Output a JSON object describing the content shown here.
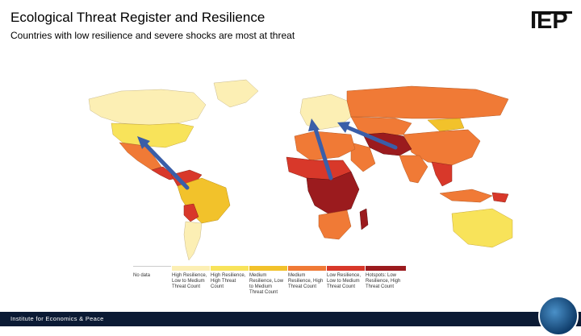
{
  "header": {
    "title": "Ecological Threat Register and Resilience",
    "subtitle": "Countries with low resilience and severe shocks are most at threat"
  },
  "logo": {
    "text": "IEP"
  },
  "legend": {
    "items": [
      {
        "label": "No data",
        "color": "#ffffff"
      },
      {
        "label": "High Resilience, Low to Medium Threat Count",
        "color": "#fcefb4"
      },
      {
        "label": "High Resilience, High Threat Count",
        "color": "#f8e35a"
      },
      {
        "label": "Medium Resilience, Low to Medium Threat Count",
        "color": "#f2c22b"
      },
      {
        "label": "Medium Resilience, High Threat Count",
        "color": "#f07a36"
      },
      {
        "label": "Low Resilience, Low to Medium Threat Count",
        "color": "#d8382a"
      },
      {
        "label": "Hotspots: Low Resilience, High Threat Count",
        "color": "#9b1b1e"
      }
    ]
  },
  "footer": {
    "text": "Institute for Economics & Peace"
  },
  "colors": {
    "footer_bg": "#0b1a34",
    "arrow": "#3a5ea8"
  }
}
